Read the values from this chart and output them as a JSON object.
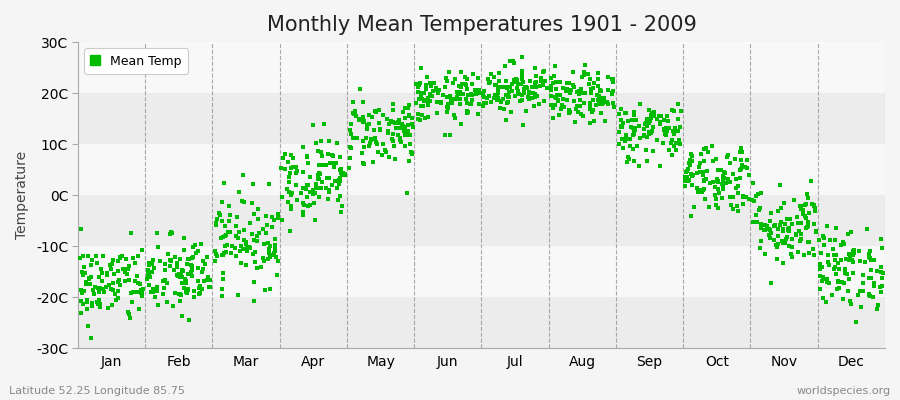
{
  "title": "Monthly Mean Temperatures 1901 - 2009",
  "ylabel": "Temperature",
  "subtitle_left": "Latitude 52.25 Longitude 85.75",
  "subtitle_right": "worldspecies.org",
  "legend_label": "Mean Temp",
  "dot_color": "#00BB00",
  "bg_color": "#f5f5f5",
  "band_colors": [
    "#ececec",
    "#f8f8f8"
  ],
  "years": 109,
  "monthly_means": [
    -17.5,
    -16.0,
    -8.5,
    3.5,
    12.5,
    19.0,
    21.0,
    19.0,
    12.5,
    3.5,
    -6.0,
    -14.5
  ],
  "monthly_stds": [
    4.0,
    4.0,
    4.5,
    4.0,
    3.5,
    2.5,
    2.5,
    2.5,
    3.0,
    3.5,
    4.0,
    4.0
  ],
  "ylim": [
    -30,
    30
  ],
  "yticks": [
    -30,
    -20,
    -10,
    0,
    10,
    20,
    30
  ],
  "ytick_labels": [
    "-30C",
    "-20C",
    "-10C",
    "0C",
    "10C",
    "20C",
    "30C"
  ],
  "month_labels": [
    "Jan",
    "Feb",
    "Mar",
    "Apr",
    "May",
    "Jun",
    "Jul",
    "Aug",
    "Sep",
    "Oct",
    "Nov",
    "Dec"
  ],
  "title_fontsize": 15,
  "axis_fontsize": 10,
  "legend_fontsize": 9,
  "dot_size": 5,
  "dot_marker": "s"
}
